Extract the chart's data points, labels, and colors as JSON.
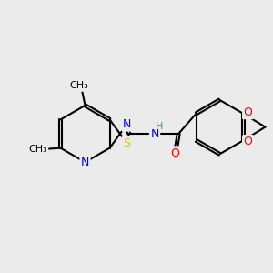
{
  "background_color": "#ebebeb",
  "bond_color": "#000000",
  "atom_colors": {
    "S": "#cccc00",
    "N": "#0000ff",
    "O": "#ff0000",
    "C": "#000000",
    "H": "#4a8f8f"
  },
  "font_size": 9,
  "figsize": [
    3.0,
    3.0
  ],
  "dpi": 100
}
